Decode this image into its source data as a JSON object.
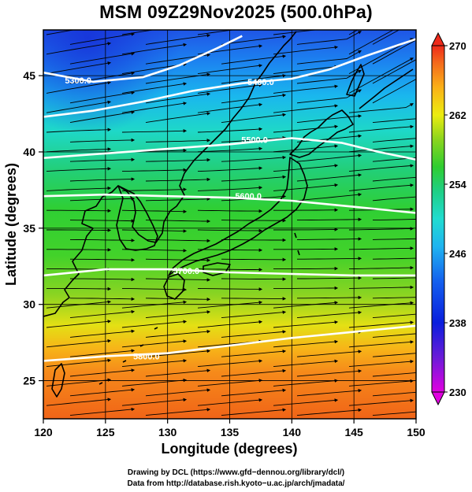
{
  "title": "MSM 09Z29Nov2025 (500.0hPa)",
  "map": {
    "lon_range": [
      120,
      150
    ],
    "lat_range": [
      22.5,
      48
    ],
    "x_ticks": [
      120,
      125,
      130,
      135,
      140,
      145,
      150
    ],
    "y_ticks": [
      25,
      30,
      35,
      40,
      45
    ],
    "xlabel": "Longitude (degrees)",
    "ylabel": "Latitude  (degrees)",
    "field": "temperature (shaded) with geopotential height contours and wind streamlines",
    "contours": [
      {
        "label": "5300.0",
        "label_lon": 122.8,
        "label_lat": 44.7,
        "points": [
          [
            120,
            45.2
          ],
          [
            124,
            44.6
          ],
          [
            128,
            44.9
          ],
          [
            131,
            45.7
          ],
          [
            134,
            46.8
          ],
          [
            136,
            47.6
          ]
        ]
      },
      {
        "label": "5400.0",
        "label_lon": 137.5,
        "label_lat": 44.6,
        "points": [
          [
            120,
            42.3
          ],
          [
            124,
            42.7
          ],
          [
            128,
            43.3
          ],
          [
            132,
            44.0
          ],
          [
            136,
            44.5
          ],
          [
            140,
            44.8
          ],
          [
            143,
            45.4
          ],
          [
            146,
            46.3
          ],
          [
            150,
            47.4
          ]
        ]
      },
      {
        "label": "5500.0",
        "label_lon": 137.0,
        "label_lat": 40.8,
        "points": [
          [
            120,
            39.6
          ],
          [
            125,
            39.9
          ],
          [
            130,
            40.2
          ],
          [
            135,
            40.5
          ],
          [
            140,
            40.9
          ],
          [
            144,
            40.6
          ],
          [
            147,
            40.0
          ],
          [
            150,
            39.5
          ]
        ]
      },
      {
        "label": "5600.0",
        "label_lon": 136.5,
        "label_lat": 37.1,
        "points": [
          [
            120,
            37.1
          ],
          [
            125,
            37.2
          ],
          [
            130,
            37.1
          ],
          [
            135,
            37.0
          ],
          [
            140,
            36.8
          ],
          [
            145,
            36.4
          ],
          [
            150,
            36.0
          ]
        ]
      },
      {
        "label": "5700.0",
        "label_lon": 131.5,
        "label_lat": 32.2,
        "points": [
          [
            120,
            31.9
          ],
          [
            125,
            32.3
          ],
          [
            130,
            32.3
          ],
          [
            135,
            32.1
          ],
          [
            140,
            32.0
          ],
          [
            145,
            31.9
          ],
          [
            150,
            31.9
          ]
        ]
      },
      {
        "label": "5800.0",
        "label_lon": 128.3,
        "label_lat": 26.6,
        "points": [
          [
            120,
            26.3
          ],
          [
            125,
            26.6
          ],
          [
            130,
            26.8
          ],
          [
            135,
            27.3
          ],
          [
            140,
            27.8
          ],
          [
            145,
            28.2
          ],
          [
            150,
            28.6
          ]
        ]
      }
    ]
  },
  "colorbar": {
    "min": 230,
    "max": 270,
    "tick_labels": [
      "270",
      "262",
      "254",
      "246",
      "238",
      "230"
    ],
    "tick_values": [
      270,
      262,
      254,
      246,
      238,
      230
    ],
    "colors": [
      "#e000e0",
      "#6a1bd8",
      "#0a1edd",
      "#1460ee",
      "#1fb4f0",
      "#20dcd0",
      "#1fcf85",
      "#2fcd30",
      "#8cd51e",
      "#ecec10",
      "#fab018",
      "#f46a1c",
      "#ee2a1a"
    ]
  },
  "credits": {
    "line1": "Drawing by DCL (https://www.gfd−dennou.org/library/dcl/)",
    "line2": "Data from http://database.rish.kyoto−u.ac.jp/arch/jmadata/"
  }
}
